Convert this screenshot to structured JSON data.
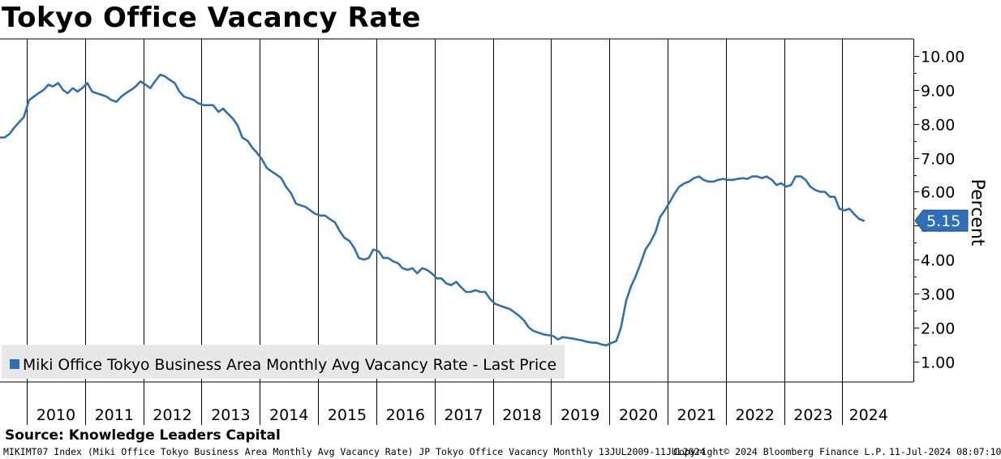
{
  "chart_data": {
    "type": "line",
    "title": "Tokyo Office Vacancy Rate",
    "ylabel": "Percent",
    "xlabel": "",
    "ylim": [
      0.4,
      10.5
    ],
    "y_ticks": [
      1.0,
      2.0,
      3.0,
      4.0,
      5.0,
      6.0,
      7.0,
      8.0,
      9.0,
      10.0
    ],
    "y_tick_labels": [
      "1.00",
      "2.00",
      "3.00",
      "4.00",
      "5.00",
      "6.00",
      "7.00",
      "8.00",
      "9.00",
      "10.00"
    ],
    "x_range": [
      2009.54,
      2024.9
    ],
    "x_year_labels": [
      "2010",
      "2011",
      "2012",
      "2013",
      "2014",
      "2015",
      "2016",
      "2017",
      "2018",
      "2019",
      "2020",
      "2021",
      "2022",
      "2023",
      "2024"
    ],
    "grid": true,
    "last_value_label": "5.15",
    "legend": {
      "position": "bottom-left",
      "label": "Miki Office Tokyo Business Area Monthly Avg Vacancy Rate - Last Price",
      "color": "#2e6fb7"
    },
    "series": [
      {
        "name": "Miki Office Tokyo Business Area Monthly Avg Vacancy Rate - Last Price",
        "color": "#2e6fb7",
        "points": [
          [
            2009.54,
            7.6
          ],
          [
            2009.62,
            7.6
          ],
          [
            2009.7,
            7.7
          ],
          [
            2009.79,
            7.9
          ],
          [
            2009.87,
            8.05
          ],
          [
            2009.95,
            8.2
          ],
          [
            2010.04,
            8.7
          ],
          [
            2010.12,
            8.8
          ],
          [
            2010.2,
            8.9
          ],
          [
            2010.29,
            9.0
          ],
          [
            2010.37,
            9.15
          ],
          [
            2010.45,
            9.1
          ],
          [
            2010.54,
            9.2
          ],
          [
            2010.62,
            9.0
          ],
          [
            2010.7,
            8.9
          ],
          [
            2010.79,
            9.05
          ],
          [
            2010.87,
            8.95
          ],
          [
            2010.95,
            9.05
          ],
          [
            2011.04,
            9.2
          ],
          [
            2011.12,
            8.95
          ],
          [
            2011.2,
            8.9
          ],
          [
            2011.29,
            8.85
          ],
          [
            2011.37,
            8.8
          ],
          [
            2011.45,
            8.7
          ],
          [
            2011.54,
            8.65
          ],
          [
            2011.62,
            8.8
          ],
          [
            2011.7,
            8.9
          ],
          [
            2011.79,
            9.0
          ],
          [
            2011.87,
            9.1
          ],
          [
            2011.95,
            9.25
          ],
          [
            2012.04,
            9.15
          ],
          [
            2012.12,
            9.05
          ],
          [
            2012.2,
            9.25
          ],
          [
            2012.29,
            9.45
          ],
          [
            2012.37,
            9.4
          ],
          [
            2012.45,
            9.3
          ],
          [
            2012.54,
            9.2
          ],
          [
            2012.62,
            8.95
          ],
          [
            2012.7,
            8.8
          ],
          [
            2012.79,
            8.75
          ],
          [
            2012.87,
            8.7
          ],
          [
            2012.95,
            8.6
          ],
          [
            2013.04,
            8.55
          ],
          [
            2013.12,
            8.55
          ],
          [
            2013.2,
            8.55
          ],
          [
            2013.29,
            8.35
          ],
          [
            2013.37,
            8.45
          ],
          [
            2013.45,
            8.3
          ],
          [
            2013.54,
            8.15
          ],
          [
            2013.62,
            7.95
          ],
          [
            2013.7,
            7.6
          ],
          [
            2013.79,
            7.5
          ],
          [
            2013.87,
            7.3
          ],
          [
            2013.95,
            7.15
          ],
          [
            2014.04,
            6.95
          ],
          [
            2014.12,
            6.7
          ],
          [
            2014.2,
            6.6
          ],
          [
            2014.29,
            6.5
          ],
          [
            2014.37,
            6.4
          ],
          [
            2014.45,
            6.15
          ],
          [
            2014.54,
            5.95
          ],
          [
            2014.62,
            5.65
          ],
          [
            2014.7,
            5.6
          ],
          [
            2014.79,
            5.55
          ],
          [
            2014.87,
            5.45
          ],
          [
            2014.95,
            5.35
          ],
          [
            2015.04,
            5.3
          ],
          [
            2015.12,
            5.3
          ],
          [
            2015.2,
            5.2
          ],
          [
            2015.29,
            5.1
          ],
          [
            2015.37,
            4.85
          ],
          [
            2015.45,
            4.65
          ],
          [
            2015.54,
            4.55
          ],
          [
            2015.62,
            4.35
          ],
          [
            2015.7,
            4.05
          ],
          [
            2015.79,
            4.0
          ],
          [
            2015.87,
            4.05
          ],
          [
            2015.95,
            4.3
          ],
          [
            2016.04,
            4.25
          ],
          [
            2016.12,
            4.05
          ],
          [
            2016.2,
            4.05
          ],
          [
            2016.29,
            3.95
          ],
          [
            2016.37,
            3.9
          ],
          [
            2016.45,
            3.75
          ],
          [
            2016.54,
            3.7
          ],
          [
            2016.62,
            3.75
          ],
          [
            2016.7,
            3.6
          ],
          [
            2016.79,
            3.75
          ],
          [
            2016.87,
            3.7
          ],
          [
            2016.95,
            3.6
          ],
          [
            2017.04,
            3.45
          ],
          [
            2017.12,
            3.45
          ],
          [
            2017.2,
            3.3
          ],
          [
            2017.29,
            3.25
          ],
          [
            2017.37,
            3.35
          ],
          [
            2017.45,
            3.2
          ],
          [
            2017.54,
            3.05
          ],
          [
            2017.62,
            3.05
          ],
          [
            2017.7,
            3.1
          ],
          [
            2017.79,
            3.05
          ],
          [
            2017.87,
            3.05
          ],
          [
            2017.95,
            2.85
          ],
          [
            2018.04,
            2.7
          ],
          [
            2018.12,
            2.65
          ],
          [
            2018.2,
            2.6
          ],
          [
            2018.29,
            2.55
          ],
          [
            2018.37,
            2.45
          ],
          [
            2018.45,
            2.35
          ],
          [
            2018.54,
            2.2
          ],
          [
            2018.62,
            2.0
          ],
          [
            2018.7,
            1.9
          ],
          [
            2018.79,
            1.85
          ],
          [
            2018.87,
            1.8
          ],
          [
            2018.95,
            1.78
          ],
          [
            2019.04,
            1.75
          ],
          [
            2019.12,
            1.65
          ],
          [
            2019.2,
            1.72
          ],
          [
            2019.29,
            1.7
          ],
          [
            2019.37,
            1.68
          ],
          [
            2019.45,
            1.65
          ],
          [
            2019.54,
            1.62
          ],
          [
            2019.62,
            1.58
          ],
          [
            2019.7,
            1.56
          ],
          [
            2019.79,
            1.55
          ],
          [
            2019.87,
            1.5
          ],
          [
            2019.95,
            1.48
          ],
          [
            2020.04,
            1.55
          ],
          [
            2020.12,
            1.6
          ],
          [
            2020.2,
            2.0
          ],
          [
            2020.29,
            2.8
          ],
          [
            2020.37,
            3.2
          ],
          [
            2020.45,
            3.5
          ],
          [
            2020.54,
            3.9
          ],
          [
            2020.62,
            4.3
          ],
          [
            2020.7,
            4.5
          ],
          [
            2020.79,
            4.8
          ],
          [
            2020.87,
            5.25
          ],
          [
            2020.95,
            5.45
          ],
          [
            2021.04,
            5.7
          ],
          [
            2021.12,
            5.95
          ],
          [
            2021.2,
            6.15
          ],
          [
            2021.29,
            6.25
          ],
          [
            2021.37,
            6.3
          ],
          [
            2021.45,
            6.4
          ],
          [
            2021.54,
            6.45
          ],
          [
            2021.62,
            6.35
          ],
          [
            2021.7,
            6.3
          ],
          [
            2021.79,
            6.3
          ],
          [
            2021.87,
            6.35
          ],
          [
            2021.95,
            6.38
          ],
          [
            2022.04,
            6.35
          ],
          [
            2022.12,
            6.35
          ],
          [
            2022.2,
            6.38
          ],
          [
            2022.29,
            6.4
          ],
          [
            2022.37,
            6.38
          ],
          [
            2022.45,
            6.45
          ],
          [
            2022.54,
            6.45
          ],
          [
            2022.62,
            6.4
          ],
          [
            2022.7,
            6.45
          ],
          [
            2022.79,
            6.35
          ],
          [
            2022.87,
            6.2
          ],
          [
            2022.95,
            6.25
          ],
          [
            2023.04,
            6.15
          ],
          [
            2023.12,
            6.2
          ],
          [
            2023.2,
            6.45
          ],
          [
            2023.29,
            6.45
          ],
          [
            2023.37,
            6.35
          ],
          [
            2023.45,
            6.15
          ],
          [
            2023.54,
            6.05
          ],
          [
            2023.62,
            6.0
          ],
          [
            2023.7,
            6.0
          ],
          [
            2023.79,
            5.85
          ],
          [
            2023.87,
            5.85
          ],
          [
            2023.95,
            5.5
          ],
          [
            2024.04,
            5.45
          ],
          [
            2024.12,
            5.5
          ],
          [
            2024.2,
            5.35
          ],
          [
            2024.29,
            5.2
          ],
          [
            2024.37,
            5.15
          ]
        ]
      }
    ]
  },
  "footer": {
    "source": "Source: Knowledge Leaders Capital",
    "index_info": "MIKIMT07 Index (Miki Office Tokyo Business Area Monthly Avg Vacancy Rate) JP Tokyo Office Vacancy  Monthly 13JUL2009-11JUL2024",
    "copyright": "Copyright© 2024 Bloomberg Finance L.P.",
    "timestamp": "11-Jul-2024 08:07:10"
  }
}
